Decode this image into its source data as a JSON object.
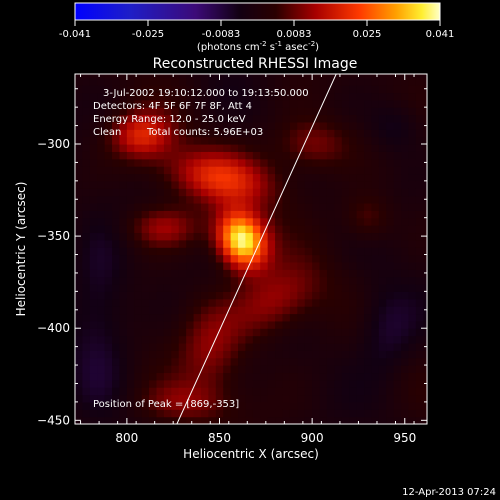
{
  "colorbar": {
    "tick_labels": [
      "-0.041",
      "-0.025",
      "-0.0083",
      "0.0083",
      "0.025",
      "0.041"
    ],
    "unit_label": "(photons cm",
    "unit_exp1": "-2",
    "unit_mid": " s",
    "unit_exp2": "-1",
    "unit_mid2": " asec",
    "unit_exp3": "-2",
    "unit_end": ")",
    "range": [
      -0.041,
      0.041
    ]
  },
  "title": "Reconstructed RHESSI Image",
  "annotations": {
    "time_range": "3-Jul-2002 19:10:12.000 to 19:13:50.000",
    "detectors": "Detectors: 4F 5F 6F 7F 8F, Att 4",
    "energy_range": "Energy Range: 12.0 - 25.0 keV",
    "clean": "Clean",
    "total_counts": "Total counts: 5.96E+03",
    "peak": "Position of Peak = [869,-353]"
  },
  "footer_timestamp": "12-Apr-2013 07:24",
  "colors": {
    "background": "#000000",
    "axis": "#ffffff",
    "limb_line": "#ffffff"
  },
  "chart_data": {
    "type": "heatmap",
    "title": "Reconstructed RHESSI Image",
    "xlabel": "Heliocentric X (arcsec)",
    "ylabel": "Heliocentric Y (arcsec)",
    "xlim": [
      772,
      962
    ],
    "ylim": [
      -452,
      -262
    ],
    "x_ticks": [
      800,
      850,
      900,
      950
    ],
    "y_ticks": [
      -300,
      -350,
      -400,
      -450
    ],
    "x_tick_labels": [
      "800",
      "850",
      "900",
      "950"
    ],
    "y_tick_labels": [
      "−300",
      "−350",
      "−400",
      "−450"
    ],
    "colormap": "blue-black-purple-red-yellow-white",
    "peak_position": [
      869,
      -353
    ],
    "limb_line": [
      [
        827,
        -452
      ],
      [
        913,
        -262
      ]
    ],
    "source_features": [
      {
        "x": 862,
        "y": -352,
        "sx": 9,
        "sy": 11,
        "amp": 0.041,
        "angle": 25
      },
      {
        "x": 850,
        "y": -318,
        "sx": 22,
        "sy": 10,
        "amp": 0.018,
        "angle": -10
      },
      {
        "x": 808,
        "y": -295,
        "sx": 12,
        "sy": 9,
        "amp": 0.018,
        "angle": 0
      },
      {
        "x": 820,
        "y": -345,
        "sx": 14,
        "sy": 8,
        "amp": 0.012,
        "angle": 0
      },
      {
        "x": 880,
        "y": -385,
        "sx": 18,
        "sy": 12,
        "amp": 0.013,
        "angle": 30
      },
      {
        "x": 900,
        "y": -300,
        "sx": 14,
        "sy": 10,
        "amp": 0.011,
        "angle": 0
      },
      {
        "x": 845,
        "y": -410,
        "sx": 12,
        "sy": 18,
        "amp": 0.01,
        "angle": 0
      },
      {
        "x": 830,
        "y": -440,
        "sx": 18,
        "sy": 8,
        "amp": 0.008,
        "angle": 0
      },
      {
        "x": 930,
        "y": -340,
        "sx": 9,
        "sy": 9,
        "amp": 0.008,
        "angle": 0
      },
      {
        "x": 940,
        "y": -400,
        "sx": 12,
        "sy": 18,
        "amp": -0.008,
        "angle": 0
      },
      {
        "x": 785,
        "y": -390,
        "sx": 12,
        "sy": 30,
        "amp": -0.008,
        "angle": 0
      },
      {
        "x": 945,
        "y": -290,
        "sx": 10,
        "sy": 10,
        "amp": -0.006,
        "angle": 0
      }
    ]
  }
}
